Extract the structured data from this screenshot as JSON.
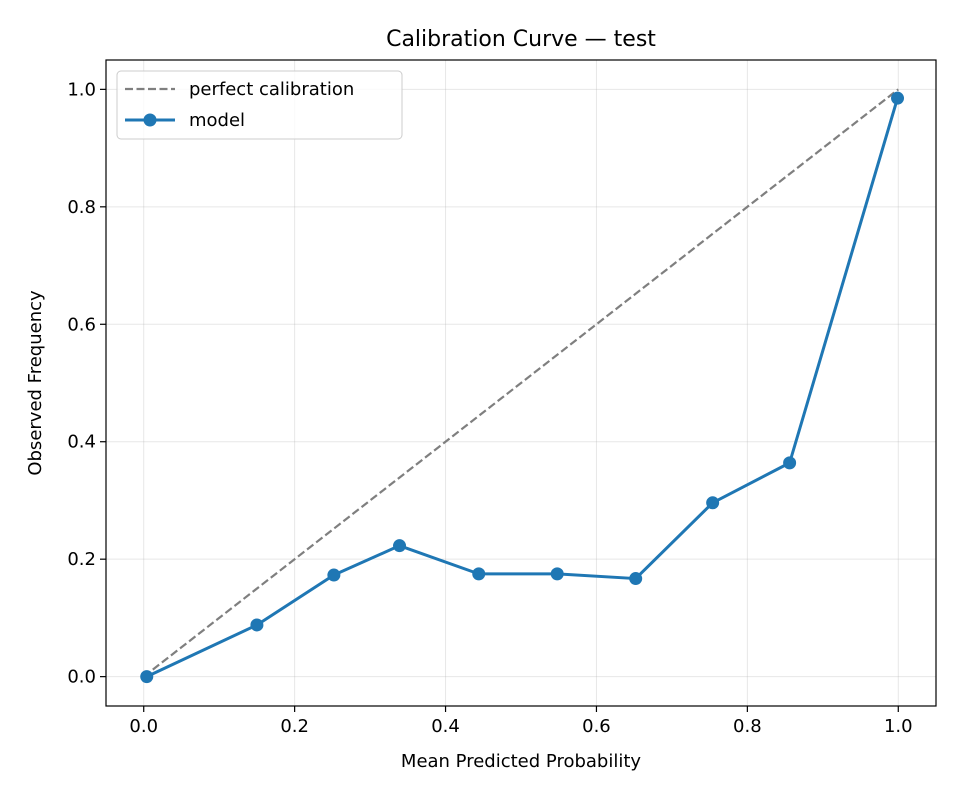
{
  "chart_data": {
    "type": "line",
    "title": "Calibration Curve — test",
    "xlabel": "Mean Predicted Probability",
    "ylabel": "Observed Frequency",
    "xlim": [
      -0.05,
      1.05
    ],
    "ylim": [
      -0.05,
      1.05
    ],
    "xticks": [
      0.0,
      0.2,
      0.4,
      0.6,
      0.8,
      1.0
    ],
    "yticks": [
      0.0,
      0.2,
      0.4,
      0.6,
      0.8,
      1.0
    ],
    "xtick_labels": [
      "0.0",
      "0.2",
      "0.4",
      "0.6",
      "0.8",
      "1.0"
    ],
    "ytick_labels": [
      "0.0",
      "0.2",
      "0.4",
      "0.6",
      "0.8",
      "1.0"
    ],
    "grid": true,
    "legend_placement": "top-left",
    "series": [
      {
        "name": "perfect calibration",
        "style": "dashed",
        "color": "#7f7f7f",
        "x": [
          0,
          1
        ],
        "y": [
          0,
          1
        ]
      },
      {
        "name": "model",
        "style": "solid-markers",
        "color": "#1f77b4",
        "x": [
          0.004,
          0.15,
          0.252,
          0.339,
          0.444,
          0.548,
          0.652,
          0.754,
          0.856,
          0.999
        ],
        "y": [
          0.0,
          0.088,
          0.173,
          0.223,
          0.175,
          0.175,
          0.167,
          0.296,
          0.364,
          0.985
        ]
      }
    ]
  }
}
